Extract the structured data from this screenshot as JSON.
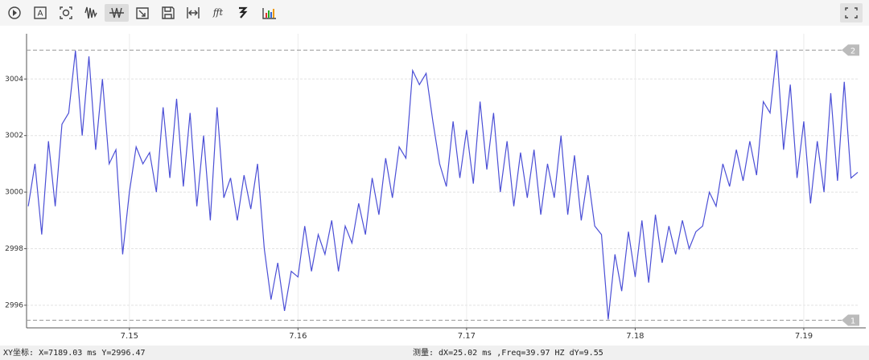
{
  "toolbar": {
    "text_icon": "A",
    "fft_icon": "fft"
  },
  "chart_data": {
    "type": "line",
    "x": [
      7.144,
      7.1444,
      7.1448,
      7.1452,
      7.1456,
      7.146,
      7.1464,
      7.1468,
      7.1472,
      7.1476,
      7.148,
      7.1484,
      7.1488,
      7.1492,
      7.1496,
      7.15,
      7.1504,
      7.1508,
      7.1512,
      7.1516,
      7.152,
      7.1524,
      7.1528,
      7.1532,
      7.1536,
      7.154,
      7.1544,
      7.1548,
      7.1552,
      7.1556,
      7.156,
      7.1564,
      7.1568,
      7.1572,
      7.1576,
      7.158,
      7.1584,
      7.1588,
      7.1592,
      7.1596,
      7.16,
      7.1604,
      7.1608,
      7.1612,
      7.1616,
      7.162,
      7.1624,
      7.1628,
      7.1632,
      7.1636,
      7.164,
      7.1644,
      7.1648,
      7.1652,
      7.1656,
      7.166,
      7.1664,
      7.1668,
      7.1672,
      7.1676,
      7.168,
      7.1684,
      7.1688,
      7.1692,
      7.1696,
      7.17,
      7.1704,
      7.1708,
      7.1712,
      7.1716,
      7.172,
      7.1724,
      7.1728,
      7.1732,
      7.1736,
      7.174,
      7.1744,
      7.1748,
      7.1752,
      7.1756,
      7.176,
      7.1764,
      7.1768,
      7.1772,
      7.1776,
      7.178,
      7.1784,
      7.1788,
      7.1792,
      7.1796,
      7.18,
      7.1804,
      7.1808,
      7.1812,
      7.1816,
      7.182,
      7.1824,
      7.1828,
      7.1832,
      7.1836,
      7.184,
      7.1844,
      7.1848,
      7.1852,
      7.1856,
      7.186,
      7.1864,
      7.1868,
      7.1872,
      7.1876,
      7.188,
      7.1884,
      7.1888,
      7.1892,
      7.1896,
      7.19,
      7.1904,
      7.1908,
      7.1912,
      7.1916,
      7.192,
      7.1924,
      7.1928,
      7.1932
    ],
    "series": [
      {
        "color": "#4b4fd6",
        "values": [
          2999.5,
          3001,
          2998.5,
          3001.8,
          2999.5,
          3002.4,
          3002.8,
          3005,
          3002,
          3004.8,
          3001.5,
          3004,
          3001,
          3001.5,
          2997.8,
          3000,
          3001.6,
          3001,
          3001.4,
          3000,
          3003,
          3000.5,
          3003.3,
          3000.2,
          3002.8,
          2999.5,
          3002,
          2999,
          3003,
          2999.8,
          3000.5,
          2999,
          3000.6,
          2999.4,
          3001,
          2998,
          2996.2,
          2997.5,
          2995.8,
          2997.2,
          2997,
          2998.8,
          2997.2,
          2998.5,
          2997.8,
          2999,
          2997.2,
          2998.8,
          2998.2,
          2999.6,
          2998.5,
          3000.5,
          2999.2,
          3001.2,
          2999.8,
          3001.6,
          3001.2,
          3004.3,
          3003.8,
          3004.2,
          3002.5,
          3001,
          3000.2,
          3002.5,
          3000.5,
          3002.2,
          3000.3,
          3003.2,
          3000.8,
          3002.8,
          3000,
          3001.8,
          2999.5,
          3001.4,
          2999.8,
          3001.5,
          2999.2,
          3001,
          2999.8,
          3002,
          2999.2,
          3001.3,
          2999,
          3000.6,
          2998.8,
          2998.5,
          2995.5,
          2997.8,
          2996.5,
          2998.6,
          2997,
          2999,
          2996.8,
          2999.2,
          2997.5,
          2998.8,
          2997.8,
          2999,
          2998,
          2998.6,
          2998.8,
          3000,
          2999.5,
          3001,
          3000.2,
          3001.5,
          3000.4,
          3001.8,
          3000.6,
          3003.2,
          3002.8,
          3005,
          3001.5,
          3003.8,
          3000.5,
          3002.5,
          2999.6,
          3001.8,
          3000,
          3003.5,
          3000.4,
          3003.9,
          3000.5,
          3000.7
        ]
      }
    ],
    "xlim": [
      7.1439,
      7.1932
    ],
    "ylim": [
      2995.2,
      3005.6
    ],
    "xticks": [
      7.15,
      7.16,
      7.17,
      7.18,
      7.19
    ],
    "yticks": [
      2996,
      2998,
      3000,
      3002,
      3004
    ],
    "grid": true,
    "cursors": [
      {
        "label": "1",
        "value": 2995.47
      },
      {
        "label": "2",
        "value": 3005.02
      }
    ]
  },
  "status": {
    "coords": "XY坐标: X=7189.03 ms    Y=2996.47",
    "measure": "测量:  dX=25.02 ms ,Freq=39.97 HZ  dY=9.55"
  }
}
